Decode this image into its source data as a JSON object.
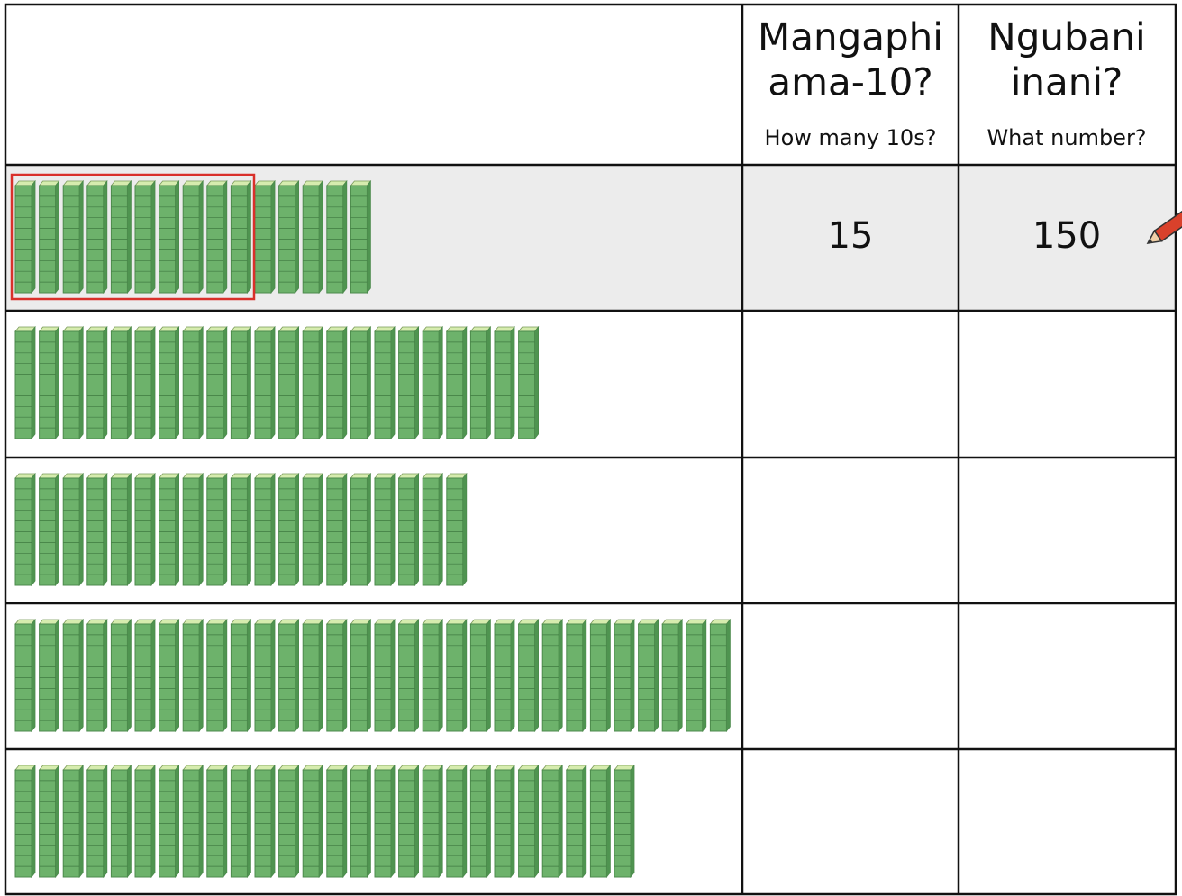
{
  "header": {
    "columns": [
      {
        "title_lines": [
          "Mangaphi",
          "ama-10?"
        ],
        "subtitle": "How many 10s?"
      },
      {
        "title_lines": [
          "Ngubani",
          "inani?"
        ],
        "subtitle": "What number?"
      }
    ]
  },
  "table": {
    "rows": [
      {
        "rods": 15,
        "highlight_group": 10,
        "tens": 15,
        "number": 150
      },
      {
        "rods": 22
      },
      {
        "rods": 19
      },
      {
        "rods": 30
      },
      {
        "rods": 26
      }
    ]
  }
}
